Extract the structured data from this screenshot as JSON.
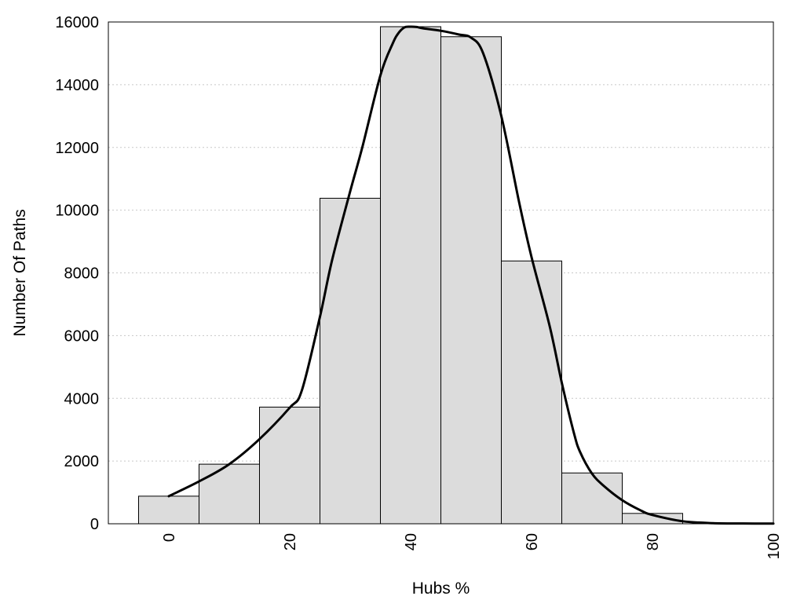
{
  "chart_data": {
    "type": "bar",
    "title": "",
    "xlabel": "Hubs %",
    "ylabel": "Number Of Paths",
    "xlim": [
      -10,
      100
    ],
    "ylim": [
      0,
      16000
    ],
    "x_ticks": [
      0,
      20,
      40,
      60,
      80,
      100
    ],
    "y_ticks": [
      0,
      2000,
      4000,
      6000,
      8000,
      10000,
      12000,
      14000,
      16000
    ],
    "grid": "horizontal dotted",
    "bin_width": 10,
    "bins": [
      {
        "center": 0,
        "value": 880
      },
      {
        "center": 10,
        "value": 1900
      },
      {
        "center": 20,
        "value": 3720
      },
      {
        "center": 30,
        "value": 10380
      },
      {
        "center": 40,
        "value": 15850
      },
      {
        "center": 50,
        "value": 15530
      },
      {
        "center": 60,
        "value": 8380
      },
      {
        "center": 70,
        "value": 1620
      },
      {
        "center": 80,
        "value": 330
      },
      {
        "center": 90,
        "value": 20
      }
    ],
    "curve": {
      "x": [
        0,
        5,
        10,
        15,
        20,
        22,
        25,
        27,
        30,
        32,
        35,
        37,
        38,
        39,
        40,
        41,
        42,
        45,
        48,
        50,
        52,
        55,
        58,
        60,
        63,
        65,
        67,
        68,
        70,
        72,
        75,
        78,
        80,
        85,
        90,
        95,
        100
      ],
      "y": [
        880,
        1350,
        1900,
        2700,
        3700,
        4250,
        6600,
        8400,
        10600,
        12000,
        14300,
        15300,
        15650,
        15830,
        15850,
        15840,
        15800,
        15720,
        15600,
        15500,
        15000,
        13000,
        10200,
        8500,
        6300,
        4500,
        2900,
        2300,
        1600,
        1200,
        750,
        430,
        280,
        80,
        20,
        10,
        5
      ]
    },
    "bar_fill": "#dcdcdc",
    "bar_stroke": "#000000",
    "curve_color": "#000000"
  }
}
